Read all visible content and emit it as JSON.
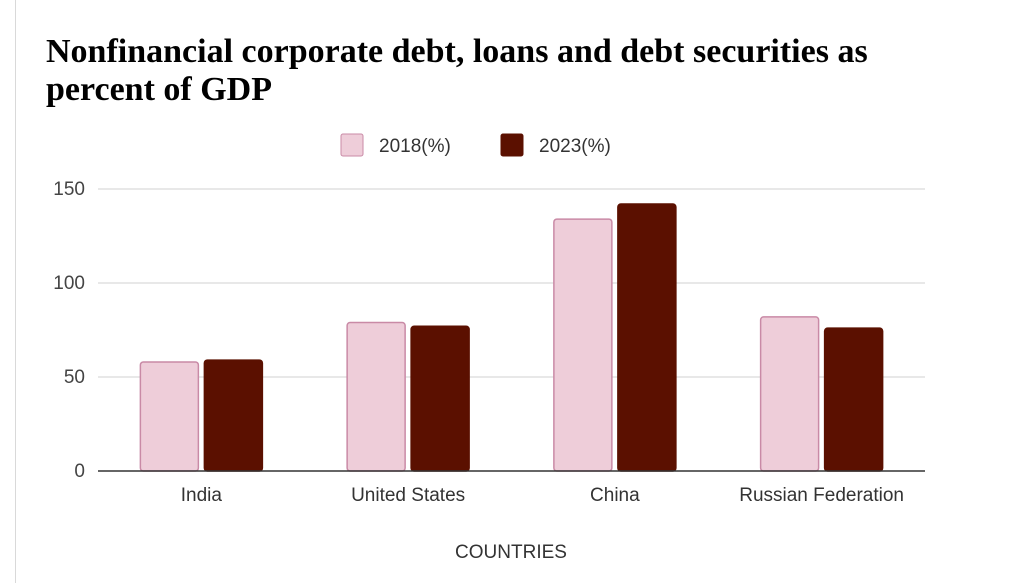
{
  "chart_data": {
    "type": "bar",
    "title": "Nonfinancial corporate debt, loans and debt securities as percent of GDP",
    "xlabel": "COUNTRIES",
    "ylabel": "",
    "categories": [
      "India",
      "United States",
      "China",
      "Russian Federation"
    ],
    "series": [
      {
        "name": "2018(%)",
        "values": [
          58,
          79,
          134,
          82
        ],
        "color": "#eecdd9",
        "stroke": "#c98aa6"
      },
      {
        "name": "2023(%)",
        "values": [
          59,
          77,
          142,
          76
        ],
        "color": "#5b1000",
        "stroke": "#5b1000"
      }
    ],
    "ylim": [
      0,
      150
    ],
    "yticks": [
      0,
      50,
      100,
      150
    ],
    "grid": true,
    "gridColor": "#d9d9d9",
    "axisColor": "#333333",
    "legend": "top-center"
  }
}
